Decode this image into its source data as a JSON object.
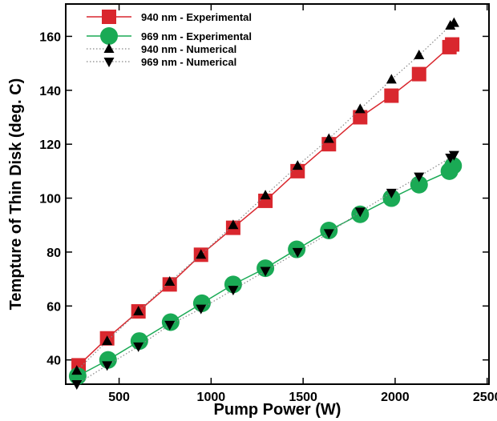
{
  "chart_data": {
    "type": "line",
    "xlabel": "Pump Power (W)",
    "ylabel": "Tempture of Thin Disk (deg. C)",
    "xlim": [
      210,
      2510
    ],
    "ylim": [
      31,
      172
    ],
    "xticks": [
      500,
      1000,
      1500,
      2000,
      2500
    ],
    "yticks": [
      40,
      60,
      80,
      100,
      120,
      140,
      160
    ],
    "grid": false,
    "legend": "top-left",
    "series": [
      {
        "name": "940 nm - Experimental",
        "style": "solid-line-square",
        "color": "#d9272e",
        "x": [
          280,
          435,
          605,
          775,
          945,
          1120,
          1295,
          1470,
          1640,
          1810,
          1980,
          2130,
          2295,
          2310
        ],
        "y": [
          38,
          48,
          58,
          68,
          79,
          89,
          99,
          110,
          120,
          130,
          138,
          146,
          156,
          157
        ]
      },
      {
        "name": "969 nm - Experimental",
        "style": "solid-line-circle",
        "color": "#1aaa55",
        "x": [
          275,
          440,
          610,
          780,
          950,
          1120,
          1295,
          1465,
          1640,
          1810,
          1980,
          2130,
          2295,
          2315
        ],
        "y": [
          34,
          40,
          47,
          54,
          61,
          68,
          74,
          81,
          88,
          94,
          100,
          105,
          110,
          112
        ]
      },
      {
        "name": "940 nm - Numerical",
        "style": "dotted-line-triangle-up",
        "color": "#000000",
        "x": [
          270,
          435,
          605,
          775,
          945,
          1120,
          1295,
          1470,
          1640,
          1810,
          1980,
          2130,
          2300,
          2320
        ],
        "y": [
          36,
          47,
          58,
          69,
          79,
          90,
          101,
          112,
          122,
          133,
          144,
          153,
          164,
          165
        ]
      },
      {
        "name": "969 nm - Numerical",
        "style": "dotted-line-triangle-down",
        "color": "#000000",
        "x": [
          270,
          435,
          605,
          775,
          945,
          1120,
          1295,
          1470,
          1640,
          1810,
          1980,
          2130,
          2300,
          2320
        ],
        "y": [
          31,
          38,
          45,
          53,
          59,
          66,
          73,
          80,
          87,
          95,
          102,
          108,
          115,
          116
        ]
      }
    ]
  }
}
